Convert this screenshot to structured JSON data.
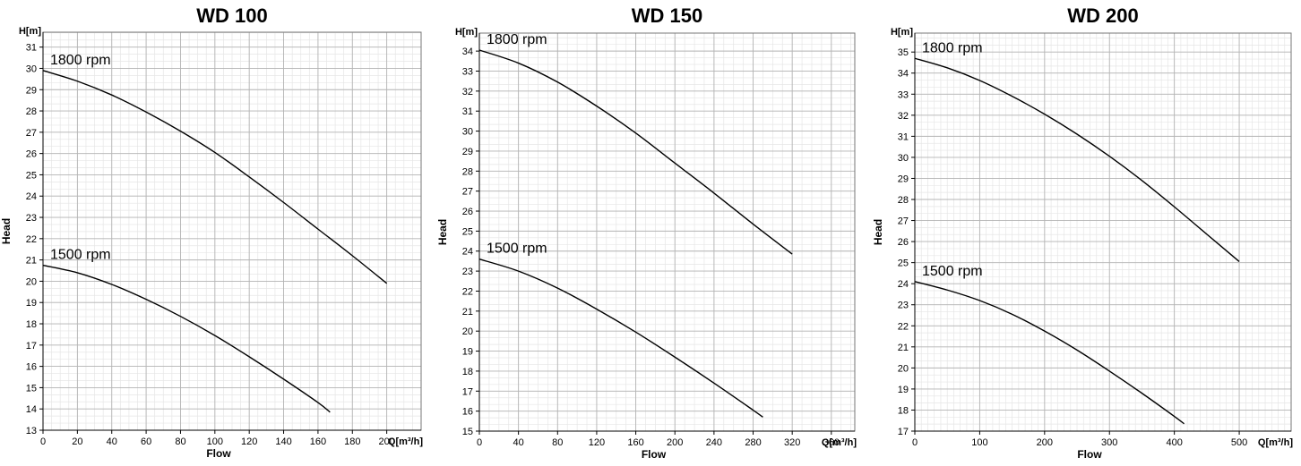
{
  "chart_data": [
    {
      "type": "line",
      "title": "WD 100",
      "xlabel": "Flow",
      "ylabel": "Head",
      "x_unit_label": "Q[m³/h]",
      "y_unit_label": "H[m]",
      "xlim": [
        0,
        220
      ],
      "ylim": [
        13,
        31.7
      ],
      "x_ticks": [
        0,
        20,
        40,
        60,
        80,
        100,
        120,
        140,
        160,
        180,
        200
      ],
      "y_ticks": [
        13,
        14,
        15,
        16,
        17,
        18,
        19,
        20,
        21,
        22,
        23,
        24,
        25,
        26,
        27,
        28,
        29,
        30,
        31
      ],
      "grid": true,
      "series": [
        {
          "name": "1800 rpm",
          "x": [
            0,
            20,
            40,
            60,
            80,
            100,
            120,
            140,
            160,
            180,
            200
          ],
          "y": [
            29.9,
            29.4,
            28.75,
            27.95,
            27.05,
            26.05,
            24.9,
            23.7,
            22.45,
            21.2,
            19.9
          ]
        },
        {
          "name": "1500 rpm",
          "x": [
            0,
            20,
            40,
            60,
            80,
            100,
            120,
            140,
            160,
            167
          ],
          "y": [
            20.75,
            20.4,
            19.85,
            19.15,
            18.35,
            17.45,
            16.45,
            15.4,
            14.3,
            13.85
          ]
        }
      ]
    },
    {
      "type": "line",
      "title": "WD 150",
      "xlabel": "Flow",
      "ylabel": "Head",
      "x_unit_label": "Q[m³/h]",
      "y_unit_label": "H[m]",
      "xlim": [
        0,
        384
      ],
      "ylim": [
        15,
        34.9
      ],
      "x_ticks": [
        0,
        40,
        80,
        120,
        160,
        200,
        240,
        280,
        320,
        360
      ],
      "y_ticks": [
        15,
        16,
        17,
        18,
        19,
        20,
        21,
        22,
        23,
        24,
        25,
        26,
        27,
        28,
        29,
        30,
        31,
        32,
        33,
        34
      ],
      "grid": true,
      "series": [
        {
          "name": "1800 rpm",
          "x": [
            0,
            40,
            80,
            120,
            160,
            200,
            240,
            280,
            320
          ],
          "y": [
            34.05,
            33.4,
            32.45,
            31.25,
            29.9,
            28.4,
            26.9,
            25.35,
            23.85
          ]
        },
        {
          "name": "1500 rpm",
          "x": [
            0,
            40,
            80,
            120,
            160,
            200,
            240,
            280,
            290
          ],
          "y": [
            23.6,
            23.0,
            22.15,
            21.1,
            19.95,
            18.7,
            17.4,
            16.05,
            15.7
          ]
        }
      ]
    },
    {
      "type": "line",
      "title": "WD 200",
      "xlabel": "Flow",
      "ylabel": "Head",
      "x_unit_label": "Q[m³/h]",
      "y_unit_label": "H[m]",
      "xlim": [
        0,
        580
      ],
      "ylim": [
        17,
        35.9
      ],
      "x_ticks": [
        0,
        100,
        200,
        300,
        400,
        500
      ],
      "y_ticks": [
        17,
        18,
        19,
        20,
        21,
        22,
        23,
        24,
        25,
        26,
        27,
        28,
        29,
        30,
        31,
        32,
        33,
        34,
        35
      ],
      "grid": true,
      "series": [
        {
          "name": "1800 rpm",
          "x": [
            0,
            50,
            100,
            150,
            200,
            250,
            300,
            350,
            400,
            450,
            500
          ],
          "y": [
            34.7,
            34.25,
            33.65,
            32.9,
            32.05,
            31.1,
            30.05,
            28.9,
            27.65,
            26.35,
            25.05
          ]
        },
        {
          "name": "1500 rpm",
          "x": [
            0,
            50,
            100,
            150,
            200,
            250,
            300,
            350,
            400,
            415
          ],
          "y": [
            24.1,
            23.7,
            23.2,
            22.55,
            21.75,
            20.85,
            19.85,
            18.8,
            17.7,
            17.35
          ]
        }
      ]
    }
  ]
}
